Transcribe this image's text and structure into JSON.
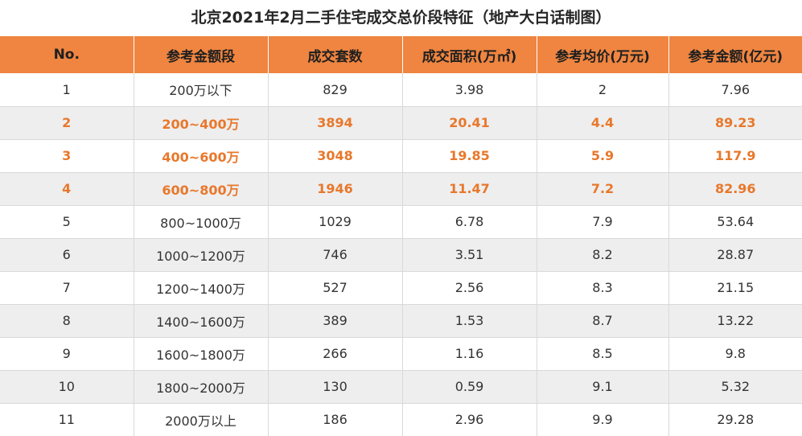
{
  "title": "北京2021年2月二手住宅成交总价段特征（地产大白话制图）",
  "headers": [
    "No.",
    "参考金额段",
    "成交套数",
    "成交面积(万㎡)",
    "参考均价(万元)",
    "参考金额(亿元)"
  ],
  "rows": [
    {
      "cells": [
        "1",
        "200万以下",
        "829",
        "3.98",
        "2",
        "7.96"
      ],
      "highlight": false
    },
    {
      "cells": [
        "2",
        "200~400万",
        "3894",
        "20.41",
        "4.4",
        "89.23"
      ],
      "highlight": true
    },
    {
      "cells": [
        "3",
        "400~600万",
        "3048",
        "19.85",
        "5.9",
        "117.9"
      ],
      "highlight": true
    },
    {
      "cells": [
        "4",
        "600~800万",
        "1946",
        "11.47",
        "7.2",
        "82.96"
      ],
      "highlight": true
    },
    {
      "cells": [
        "5",
        "800~1000万",
        "1029",
        "6.78",
        "7.9",
        "53.64"
      ],
      "highlight": false
    },
    {
      "cells": [
        "6",
        "1000~1200万",
        "746",
        "3.51",
        "8.2",
        "28.87"
      ],
      "highlight": false
    },
    {
      "cells": [
        "7",
        "1200~1400万",
        "527",
        "2.56",
        "8.3",
        "21.15"
      ],
      "highlight": false
    },
    {
      "cells": [
        "8",
        "1400~1600万",
        "389",
        "1.53",
        "8.7",
        "13.22"
      ],
      "highlight": false
    },
    {
      "cells": [
        "9",
        "1600~1800万",
        "266",
        "1.16",
        "8.5",
        "9.8"
      ],
      "highlight": false
    },
    {
      "cells": [
        "10",
        "1800~2000万",
        "130",
        "0.59",
        "9.1",
        "5.32"
      ],
      "highlight": false
    },
    {
      "cells": [
        "11",
        "2000万以上",
        "186",
        "2.96",
        "9.9",
        "29.28"
      ],
      "highlight": false
    }
  ],
  "colors": {
    "header_bg": "#ef8540",
    "highlight_text": "#e8782c",
    "stripe_bg": "#eeeeee"
  }
}
